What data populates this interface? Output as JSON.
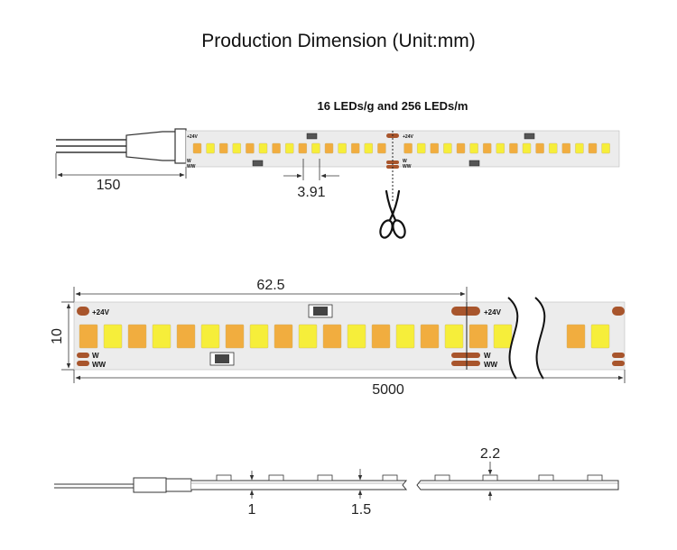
{
  "title": "Production Dimension (Unit:mm)",
  "subtitle": "16 LEDs/g and 256 LEDs/m",
  "dimensions": {
    "wire_length": "150",
    "led_pitch": "3.91",
    "group_length": "62.5",
    "strip_width": "10",
    "total_length": "5000",
    "led_height": "2.2",
    "pcb_thickness": "1",
    "total_thickness": "1.5"
  },
  "markings": {
    "positive": "+24V",
    "white": "W",
    "warm_white": "WW"
  },
  "colors": {
    "pcb": "#ececec",
    "led_warm": "#f1ad3f",
    "led_white": "#f6ee3a",
    "copper_pad": "#a8552c",
    "outline": "#333333",
    "dimension_line": "#333333"
  },
  "icons": [
    "scissors-icon",
    "wire-connector-icon",
    "resistor-icon"
  ]
}
